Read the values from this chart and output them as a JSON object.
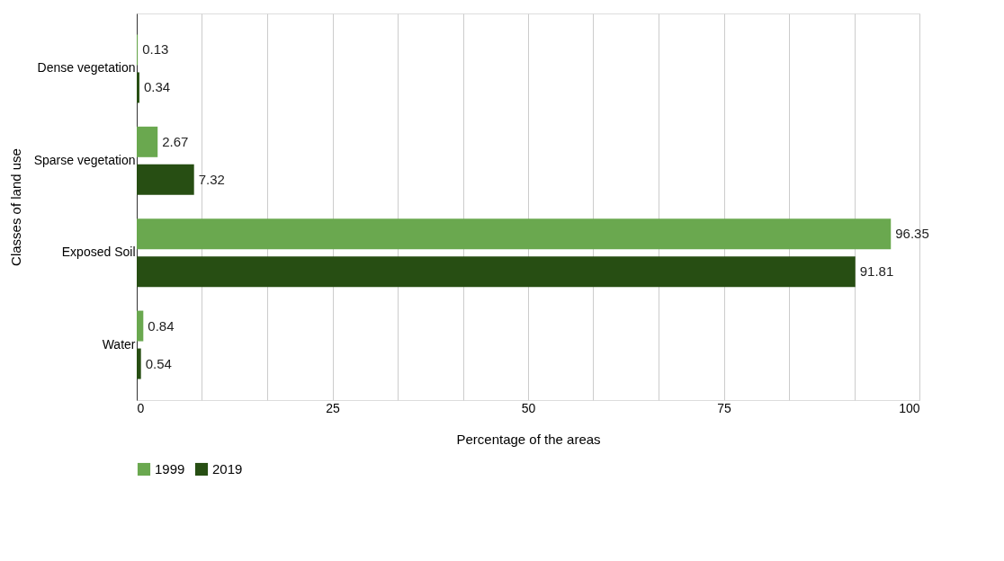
{
  "chart_data": {
    "type": "bar",
    "orientation": "horizontal",
    "xlabel": "Percentage of the areas",
    "ylabel": "Classes of land use",
    "categories": [
      "Dense vegetation",
      "Sparse vegetation",
      "Exposed Soil",
      "Water"
    ],
    "series": [
      {
        "name": "1999",
        "color": "#6aa84f",
        "values": [
          0.13,
          2.67,
          96.35,
          0.84
        ]
      },
      {
        "name": "2019",
        "color": "#274e13",
        "values": [
          0.34,
          7.32,
          91.81,
          0.54
        ]
      }
    ],
    "xlim": [
      0,
      100
    ],
    "xticks": [
      0,
      {
        "value": 8.33,
        "label": null
      },
      {
        "value": 16.67,
        "label": null
      },
      25,
      {
        "value": 33.33,
        "label": null
      },
      {
        "value": 41.67,
        "label": null
      },
      50,
      {
        "value": 58.33,
        "label": null
      },
      {
        "value": 66.67,
        "label": null
      },
      75,
      {
        "value": 83.33,
        "label": null
      },
      {
        "value": 91.67,
        "label": null
      },
      100
    ],
    "grid": "x",
    "data_labels": true,
    "legend": "bottom"
  }
}
